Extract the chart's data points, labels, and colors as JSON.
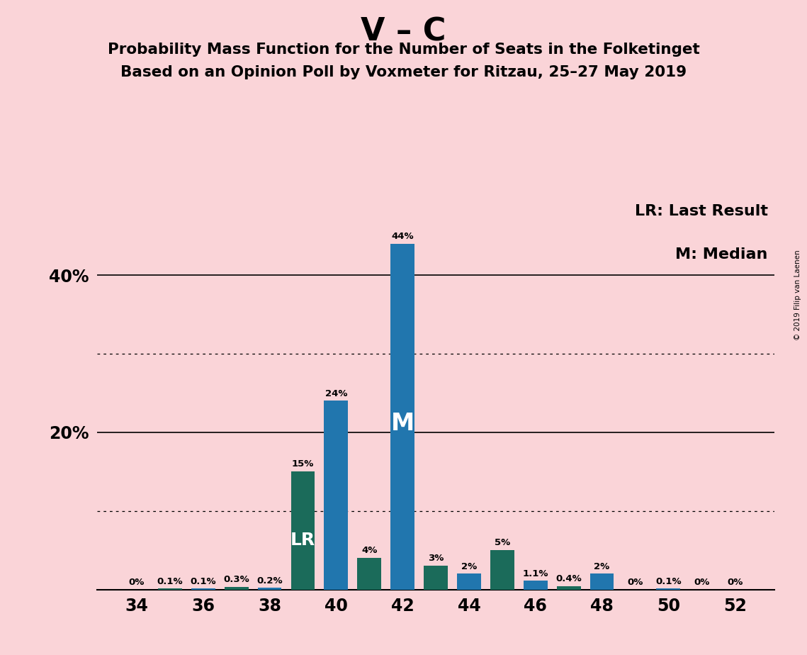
{
  "title": "V – C",
  "subtitle1": "Probability Mass Function for the Number of Seats in the Folketinget",
  "subtitle2": "Based on an Opinion Poll by Voxmeter for Ritzau, 25–27 May 2019",
  "copyright": "© 2019 Filip van Laenen",
  "seats": [
    34,
    35,
    36,
    37,
    38,
    39,
    40,
    41,
    42,
    43,
    44,
    45,
    46,
    47,
    48,
    49,
    50,
    51,
    52
  ],
  "probabilities": [
    0.0,
    0.1,
    0.1,
    0.3,
    0.2,
    15.0,
    24.0,
    4.0,
    44.0,
    3.0,
    2.0,
    5.0,
    1.1,
    0.4,
    2.0,
    0.0,
    0.1,
    0.0,
    0.0
  ],
  "bar_labels": [
    "0%",
    "0.1%",
    "0.1%",
    "0.3%",
    "0.2%",
    "15%",
    "24%",
    "4%",
    "44%",
    "3%",
    "2%",
    "5%",
    "1.1%",
    "0.4%",
    "2%",
    "0%",
    "0.1%",
    "0%",
    "0%"
  ],
  "color_blue": "#2176AE",
  "color_teal": "#1B6B5A",
  "lr_seat": 39,
  "median_seat": 42,
  "background_color": "#FAD4D8",
  "legend_lr": "LR: Last Result",
  "legend_m": "M: Median",
  "ylim": [
    0,
    50
  ],
  "xlabel_seats": [
    34,
    36,
    38,
    40,
    42,
    44,
    46,
    48,
    50,
    52
  ]
}
